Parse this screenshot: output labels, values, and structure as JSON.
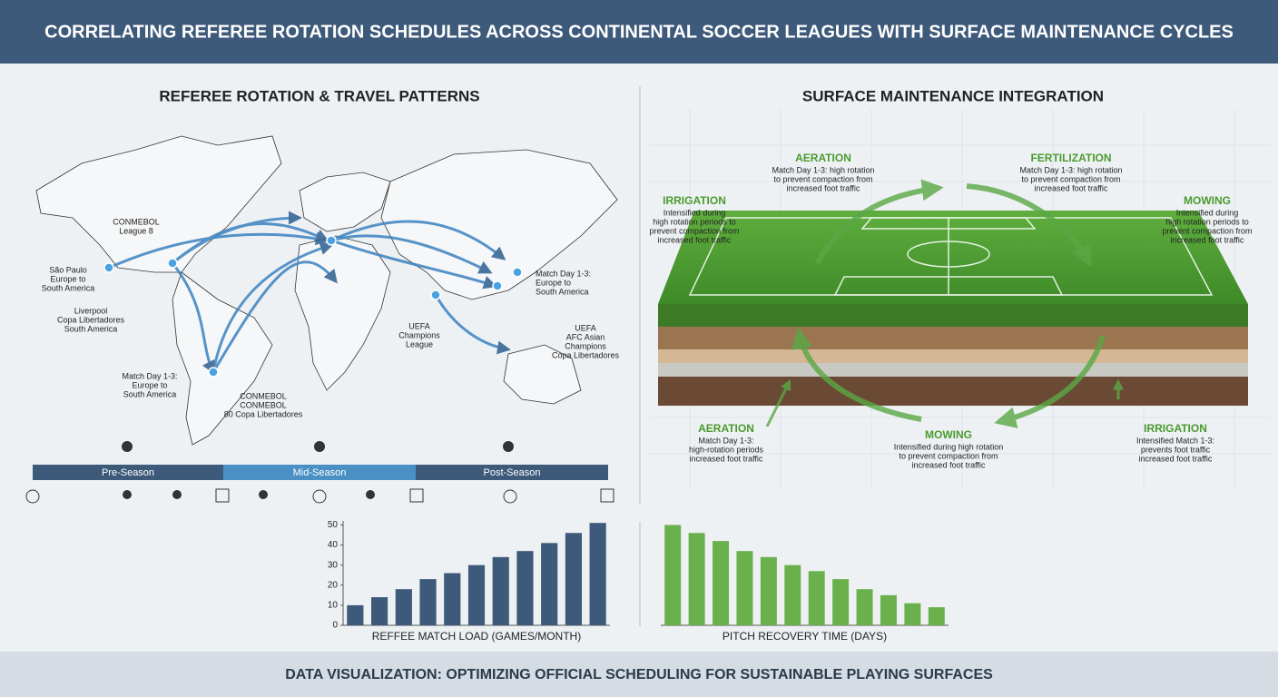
{
  "header": {
    "title": "CORRELATING REFEREE ROTATION SCHEDULES ACROSS CONTINENTAL SOCCER LEAGUES WITH SURFACE MAINTENANCE CYCLES"
  },
  "map": {
    "title": "REFEREE ROTATION & TRAVEL PATTERNS",
    "labels": [
      [
        "CONMEBOL",
        "League 8"
      ],
      [
        "São Paulo",
        "Europe to",
        "South America"
      ],
      [
        "Liverpool",
        "Copa Libertadores",
        "South America"
      ],
      [
        "Match Day 1-3:",
        "Europe to",
        "South America"
      ],
      [
        "CONMEBOL",
        "CONMEBOL",
        "80 Copa Libertadores"
      ],
      [
        "UEFA",
        "Champions",
        "League"
      ],
      [
        "Match Day 1-3:",
        "Europe to",
        "South America"
      ],
      [
        "UEFA",
        "AFC Asian",
        "Champions",
        "Copa Libertadores"
      ]
    ]
  },
  "timeline": {
    "phases": [
      "Pre-Season",
      "Mid-Season",
      "Post-Season"
    ]
  },
  "maintenance": {
    "title": "SURFACE MAINTENANCE INTEGRATION",
    "steps": [
      {
        "name": "AERATION",
        "lines": [
          "Match Day 1-3: high rotation",
          "to prevent compaction from",
          "increased foot traffic"
        ]
      },
      {
        "name": "FERTILIZATION",
        "lines": [
          "Match Day 1-3: high rotation",
          "to prevent compaction from",
          "increased foot traffic"
        ]
      },
      {
        "name": "IRRIGATION",
        "lines": [
          "Intensified during",
          "high rotation periods to",
          "prevent compaction from",
          "increased foot traffic"
        ]
      },
      {
        "name": "MOWING",
        "lines": [
          "Intensified during",
          "high rotation periods to",
          "prevent compaction from",
          "increased foot traffic"
        ]
      },
      {
        "name": "AERATION",
        "lines": [
          "Match Day 1-3:",
          "high-rotation periods",
          "increased foot traffic"
        ]
      },
      {
        "name": "MOWING",
        "lines": [
          "Intensified during high rotation",
          "to prevent compaction from",
          "increased foot traffic"
        ]
      },
      {
        "name": "IRRIGATION",
        "lines": [
          "Intensified Match 1-3:",
          "prevents foot traffic",
          "increased foot traffic"
        ]
      }
    ]
  },
  "footer": {
    "text": "DATA VISUALIZATION: OPTIMIZING OFFICIAL SCHEDULING FOR SUSTAINABLE PLAYING SURFACES"
  },
  "chart_data": [
    {
      "type": "bar",
      "x_label": "REFFEE MATCH LOAD (GAMES/MONTH)",
      "categories": [
        null,
        null,
        null,
        null,
        null,
        null,
        null,
        null,
        null,
        null,
        null
      ],
      "values": [
        10,
        14,
        18,
        23,
        26,
        30,
        34,
        37,
        41,
        46,
        51
      ],
      "color": "#3d5a7a",
      "ylim": [
        0,
        52
      ],
      "yticks": [
        0,
        10,
        20,
        30,
        40,
        50
      ]
    },
    {
      "type": "bar",
      "x_label": "PITCH RECOVERY TIME (DAYS)",
      "categories": [
        null,
        null,
        null,
        null,
        null,
        null,
        null,
        null,
        null,
        null,
        null,
        null
      ],
      "values": [
        50,
        46,
        42,
        37,
        34,
        30,
        27,
        23,
        18,
        15,
        11,
        9
      ],
      "color": "#6ab04c",
      "ylim": [
        0,
        52
      ]
    }
  ]
}
